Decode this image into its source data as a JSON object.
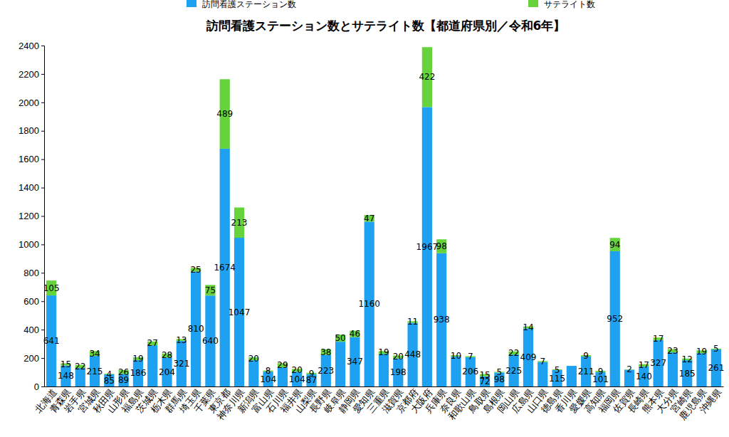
{
  "chart_data": {
    "type": "bar",
    "title": "訪問看護ステーション数とサテライト数【都道府県別／令和6年】",
    "stacked": true,
    "data_labels": true,
    "legend": "top",
    "grid": false,
    "categories": [
      "北海道",
      "青森県",
      "岩手県",
      "宮城県",
      "秋田県",
      "山形県",
      "福島県",
      "茨城県",
      "栃木県",
      "群馬県",
      "埼玉県",
      "千葉県",
      "東京都",
      "神奈川県",
      "新潟県",
      "富山県",
      "石川県",
      "福井県",
      "山梨県",
      "長野県",
      "岐阜県",
      "静岡県",
      "愛知県",
      "三重県",
      "滋賀県",
      "京都府",
      "大阪府",
      "兵庫県",
      "奈良県",
      "和歌山県",
      "鳥取県",
      "島根県",
      "岡山県",
      "広島県",
      "山口県",
      "徳島県",
      "香川県",
      "愛媛県",
      "高知県",
      "福岡県",
      "佐賀県",
      "長崎県",
      "熊本県",
      "大分県",
      "宮崎県",
      "鹿児島県",
      "沖縄県"
    ],
    "series": [
      {
        "name": "訪問看護ステーション数",
        "color": "#1ea1f1",
        "values": [
          641,
          148,
          130,
          215,
          85,
          89,
          186,
          290,
          204,
          321,
          810,
          640,
          1674,
          1047,
          185,
          104,
          135,
          104,
          87,
          223,
          315,
          347,
          1160,
          230,
          198,
          448,
          1967,
          938,
          210,
          206,
          72,
          98,
          225,
          409,
          172,
          115,
          145,
          211,
          101,
          952,
          118,
          140,
          327,
          240,
          185,
          235,
          261
        ],
        "value_labels": [
          "641",
          "148",
          null,
          "215",
          "85",
          "89",
          "186",
          null,
          "204",
          "321",
          "810",
          "640",
          "1674",
          "1047",
          null,
          "104",
          null,
          "104",
          "87",
          "223",
          null,
          "347",
          "1160",
          null,
          "198",
          "448",
          "1967",
          "938",
          null,
          "206",
          "72",
          "98",
          "225",
          "409",
          null,
          "115",
          null,
          "211",
          "101",
          "952",
          null,
          "140",
          "327",
          null,
          "185",
          null,
          "261"
        ]
      },
      {
        "name": "サテライト数",
        "color": "#67d33c",
        "values": [
          105,
          15,
          22,
          34,
          4,
          26,
          19,
          27,
          28,
          13,
          25,
          75,
          489,
          213,
          20,
          8,
          29,
          20,
          9,
          38,
          50,
          46,
          47,
          19,
          20,
          11,
          422,
          98,
          10,
          7,
          15,
          5,
          22,
          14,
          7,
          5,
          0,
          9,
          9,
          94,
          2,
          17,
          17,
          23,
          12,
          19,
          5
        ],
        "value_labels": [
          "105",
          "15",
          "22",
          "34",
          "4",
          "26",
          "19",
          "27",
          "28",
          "13",
          "25",
          "75",
          "489",
          "213",
          "20",
          "8",
          "29",
          "20",
          "9",
          "38",
          "50",
          "46",
          "47",
          "19",
          "20",
          "11",
          "422",
          "98",
          "10",
          "7",
          "15",
          "5",
          "22",
          "14",
          "7",
          "5",
          null,
          "9",
          "9",
          "94",
          "2",
          "17",
          "17",
          "23",
          "12",
          "19",
          "5"
        ]
      }
    ],
    "ylim": [
      0,
      2400
    ],
    "yticks": [
      0,
      200,
      400,
      600,
      800,
      1000,
      1200,
      1400,
      1600,
      1800,
      2000,
      2200,
      2400
    ]
  }
}
